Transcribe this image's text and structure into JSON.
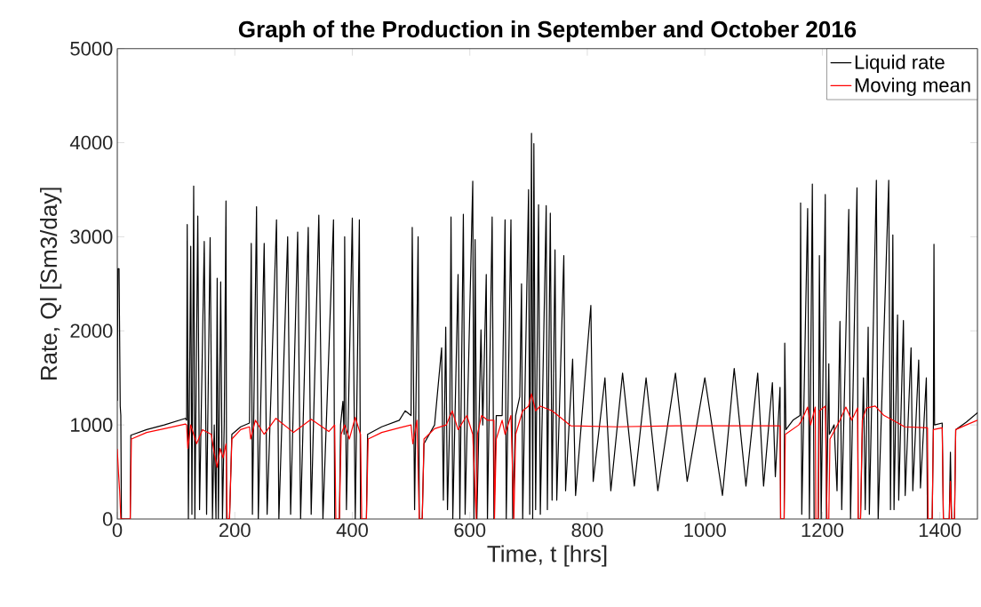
{
  "chart_data": {
    "type": "line",
    "title": "Graph of the Production in September and October 2016",
    "xlabel": "Time, t [hrs]",
    "ylabel": "Rate, Ql [Sm3/day]",
    "xlim": [
      0,
      1464
    ],
    "ylim": [
      0,
      5000
    ],
    "xticks": [
      0,
      200,
      400,
      600,
      800,
      1000,
      1200,
      1400
    ],
    "yticks": [
      0,
      1000,
      2000,
      3000,
      4000,
      5000
    ],
    "legend": "top right",
    "series": [
      {
        "name": "Liquid rate",
        "color": "#000000",
        "x": [
          0,
          1,
          3,
          5,
          6,
          7,
          22,
          23,
          50,
          80,
          116,
          118,
          119,
          121,
          125,
          127,
          130,
          132,
          137,
          140,
          148,
          152,
          158,
          162,
          165,
          168,
          170,
          172,
          176,
          179,
          182,
          185,
          186,
          191,
          195,
          210,
          225,
          228,
          230,
          237,
          240,
          250,
          255,
          271,
          275,
          290,
          295,
          307,
          312,
          325,
          330,
          343,
          350,
          368,
          370,
          378,
          380,
          384,
          386,
          387,
          390,
          400,
          405,
          412,
          414,
          424,
          426,
          450,
          480,
          490,
          500,
          502,
          506,
          512,
          514,
          519,
          522,
          540,
          552,
          555,
          559,
          562,
          566,
          568,
          571,
          580,
          583,
          589,
          592,
          605,
          607,
          609,
          612,
          619,
          622,
          628,
          630,
          638,
          641,
          645,
          655,
          660,
          662,
          670,
          673,
          678,
          685,
          688,
          690,
          700,
          702,
          705,
          707,
          709,
          712,
          717,
          720,
          730,
          732,
          737,
          740,
          745,
          748,
          760,
          763,
          775,
          780,
          806,
          810,
          830,
          840,
          860,
          880,
          900,
          920,
          950,
          970,
          1000,
          1030,
          1050,
          1070,
          1090,
          1100,
          1115,
          1120,
          1128,
          1129,
          1135,
          1136,
          1138,
          1150,
          1162,
          1163,
          1165,
          1175,
          1178,
          1183,
          1186,
          1188,
          1193,
          1195,
          1198,
          1205,
          1207,
          1211,
          1212,
          1220,
          1225,
          1230,
          1233,
          1245,
          1248,
          1259,
          1261,
          1265,
          1270,
          1273,
          1278,
          1280,
          1292,
          1295,
          1313,
          1316,
          1320,
          1322,
          1328,
          1330,
          1338,
          1341,
          1351,
          1354,
          1364,
          1367,
          1377,
          1379,
          1387,
          1389,
          1390,
          1391,
          1404,
          1406,
          1416,
          1418,
          1420,
          1425,
          1427,
          1445,
          1464
        ],
        "values": [
          1260,
          2660,
          2660,
          1200,
          1100,
          0,
          0,
          890,
          950,
          1000,
          1070,
          1050,
          3130,
          0,
          2900,
          50,
          3540,
          0,
          3220,
          100,
          2950,
          50,
          2990,
          0,
          1000,
          0,
          2560,
          0,
          2520,
          0,
          1000,
          3380,
          0,
          0,
          900,
          980,
          1020,
          2930,
          50,
          3320,
          0,
          2930,
          50,
          3180,
          0,
          3000,
          50,
          3050,
          0,
          3100,
          50,
          3230,
          0,
          3180,
          0,
          0,
          1000,
          1250,
          900,
          3000,
          100,
          3200,
          0,
          3180,
          0,
          0,
          900,
          980,
          1050,
          1150,
          1100,
          3100,
          100,
          3000,
          0,
          0,
          800,
          1000,
          1820,
          200,
          2040,
          100,
          1100,
          3210,
          0,
          2600,
          0,
          3240,
          50,
          3590,
          0,
          2970,
          0,
          2010,
          1000,
          2600,
          0,
          3210,
          0,
          1100,
          1100,
          3180,
          0,
          3180,
          0,
          1100,
          1300,
          2500,
          0,
          3500,
          50,
          4100,
          0,
          3990,
          100,
          3340,
          50,
          3330,
          100,
          3250,
          200,
          2860,
          200,
          2800,
          300,
          1700,
          250,
          2270,
          400,
          1500,
          300,
          1550,
          350,
          1500,
          300,
          1550,
          400,
          1500,
          250,
          1600,
          350,
          1550,
          350,
          1450,
          450,
          1400,
          0,
          0,
          1870,
          950,
          1050,
          1100,
          3360,
          50,
          3300,
          0,
          3560,
          0,
          0,
          0,
          2800,
          0,
          3450,
          0,
          1650,
          900,
          1000,
          300,
          2100,
          100,
          3290,
          0,
          3520,
          0,
          0,
          1500,
          100,
          2040,
          50,
          3600,
          0,
          3600,
          100,
          3020,
          100,
          2170,
          200,
          2110,
          250,
          1820,
          300,
          1690,
          330,
          1500,
          0,
          0,
          1000,
          2920,
          1000,
          1020,
          0,
          0,
          710,
          0,
          0,
          950,
          1030,
          1130
        ]
      },
      {
        "name": "Moving mean",
        "color": "#ff0000",
        "x": [
          0,
          2,
          4,
          6,
          22,
          24,
          50,
          80,
          116,
          118,
          120,
          125,
          135,
          145,
          160,
          165,
          170,
          175,
          180,
          185,
          187,
          191,
          195,
          210,
          225,
          227,
          235,
          250,
          270,
          300,
          330,
          360,
          370,
          372,
          378,
          381,
          387,
          395,
          405,
          414,
          416,
          424,
          427,
          450,
          480,
          500,
          503,
          510,
          514,
          519,
          522,
          540,
          560,
          570,
          580,
          595,
          605,
          611,
          613,
          620,
          630,
          641,
          642,
          645,
          655,
          660,
          670,
          675,
          678,
          690,
          700,
          705,
          712,
          720,
          740,
          760,
          772,
          850,
          950,
          1050,
          1128,
          1129,
          1135,
          1137,
          1160,
          1165,
          1175,
          1180,
          1188,
          1189,
          1193,
          1195,
          1205,
          1208,
          1211,
          1213,
          1230,
          1240,
          1250,
          1260,
          1261,
          1265,
          1268,
          1275,
          1290,
          1305,
          1320,
          1340,
          1379,
          1380,
          1387,
          1389,
          1404,
          1406,
          1416,
          1418,
          1420,
          1425,
          1427,
          1445,
          1464
        ],
        "values": [
          740,
          500,
          300,
          0,
          0,
          850,
          920,
          960,
          1010,
          1000,
          750,
          1000,
          800,
          950,
          900,
          700,
          550,
          750,
          650,
          800,
          0,
          0,
          850,
          950,
          980,
          850,
          1050,
          900,
          1070,
          920,
          1060,
          930,
          1000,
          0,
          0,
          900,
          1000,
          850,
          1080,
          900,
          0,
          0,
          850,
          920,
          970,
          1000,
          800,
          1050,
          0,
          0,
          850,
          960,
          1000,
          1150,
          950,
          1100,
          900,
          0,
          900,
          1100,
          1050,
          1050,
          0,
          850,
          1050,
          900,
          1100,
          0,
          900,
          1150,
          1200,
          1330,
          1150,
          1200,
          1150,
          1050,
          990,
          980,
          990,
          990,
          990,
          0,
          0,
          900,
          1000,
          1050,
          1190,
          1000,
          1190,
          0,
          0,
          1150,
          1200,
          0,
          0,
          850,
          1050,
          1190,
          1050,
          1180,
          0,
          0,
          1050,
          1180,
          1200,
          1100,
          1050,
          980,
          970,
          0,
          0,
          950,
          970,
          0,
          0,
          400,
          0,
          0,
          950,
          1000,
          1050
        ]
      }
    ]
  }
}
